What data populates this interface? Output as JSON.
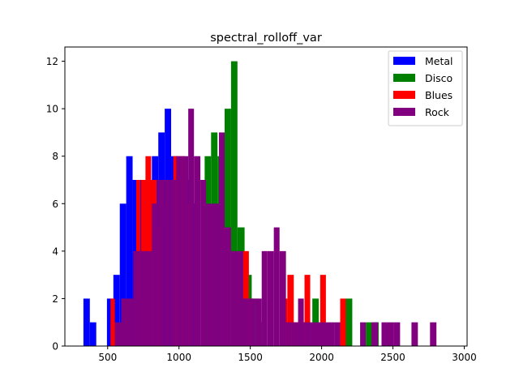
{
  "chart_data": {
    "type": "histogram",
    "title": "spectral_rolloff_var",
    "xlabel": "",
    "ylabel": "",
    "xlim": [
      200,
      3020
    ],
    "ylim": [
      0,
      12.6
    ],
    "x_ticks": [
      500,
      1000,
      1500,
      2000,
      2500,
      3000
    ],
    "y_ticks": [
      0,
      2,
      4,
      6,
      8,
      10,
      12
    ],
    "grid": false,
    "legend_position": "top-right",
    "series": [
      {
        "name": "Metal",
        "color": "#0000ff",
        "bins": [
          [
            330,
            375,
            2
          ],
          [
            375,
            420,
            1
          ],
          [
            495,
            540,
            2
          ],
          [
            540,
            585,
            3
          ],
          [
            585,
            630,
            6
          ],
          [
            630,
            675,
            8
          ],
          [
            675,
            720,
            7
          ],
          [
            720,
            765,
            7
          ],
          [
            765,
            810,
            7
          ],
          [
            810,
            855,
            8
          ],
          [
            855,
            900,
            9
          ],
          [
            900,
            945,
            10
          ],
          [
            945,
            990,
            8
          ],
          [
            990,
            1035,
            7
          ],
          [
            1035,
            1080,
            7
          ],
          [
            1080,
            1125,
            6
          ]
        ]
      },
      {
        "name": "Disco",
        "color": "#008000",
        "bins": [
          [
            1180,
            1225,
            8
          ],
          [
            1225,
            1270,
            9
          ],
          [
            1270,
            1320,
            8
          ],
          [
            1320,
            1365,
            10
          ],
          [
            1365,
            1410,
            12
          ],
          [
            1410,
            1460,
            5
          ],
          [
            1460,
            1510,
            3
          ],
          [
            1510,
            1560,
            2
          ],
          [
            1560,
            1610,
            1
          ],
          [
            1935,
            1980,
            2
          ],
          [
            2170,
            2215,
            2
          ],
          [
            2310,
            2355,
            1
          ],
          [
            2360,
            2400,
            1
          ]
        ]
      },
      {
        "name": "Blues",
        "color": "#ff0000",
        "bins": [
          [
            520,
            550,
            2
          ],
          [
            700,
            730,
            7
          ],
          [
            735,
            765,
            7
          ],
          [
            765,
            805,
            8
          ],
          [
            805,
            845,
            7
          ],
          [
            845,
            880,
            5
          ],
          [
            960,
            1000,
            8
          ],
          [
            1000,
            1040,
            8
          ],
          [
            1040,
            1080,
            6
          ],
          [
            1450,
            1490,
            4
          ],
          [
            1490,
            1520,
            2
          ],
          [
            1720,
            1760,
            2
          ],
          [
            1760,
            1805,
            3
          ],
          [
            1805,
            1845,
            1
          ],
          [
            1840,
            1880,
            1
          ],
          [
            1880,
            1920,
            3
          ],
          [
            1990,
            2030,
            3
          ],
          [
            2130,
            2170,
            2
          ]
        ]
      },
      {
        "name": "Rock",
        "color": "#800080",
        "bins": [
          [
            550,
            595,
            1
          ],
          [
            595,
            635,
            2
          ],
          [
            635,
            680,
            2
          ],
          [
            680,
            720,
            4
          ],
          [
            720,
            765,
            4
          ],
          [
            765,
            810,
            4
          ],
          [
            810,
            850,
            6
          ],
          [
            850,
            895,
            7
          ],
          [
            895,
            935,
            7
          ],
          [
            935,
            980,
            7
          ],
          [
            980,
            1020,
            8
          ],
          [
            1020,
            1065,
            8
          ],
          [
            1065,
            1105,
            10
          ],
          [
            1105,
            1150,
            8
          ],
          [
            1150,
            1190,
            7
          ],
          [
            1190,
            1235,
            6
          ],
          [
            1235,
            1280,
            6
          ],
          [
            1280,
            1320,
            9
          ],
          [
            1320,
            1365,
            5
          ],
          [
            1365,
            1405,
            4
          ],
          [
            1405,
            1450,
            4
          ],
          [
            1450,
            1490,
            2
          ],
          [
            1490,
            1535,
            2
          ],
          [
            1535,
            1580,
            2
          ],
          [
            1580,
            1620,
            4
          ],
          [
            1620,
            1665,
            4
          ],
          [
            1665,
            1705,
            5
          ],
          [
            1705,
            1750,
            4
          ],
          [
            1750,
            1790,
            1
          ],
          [
            1790,
            1835,
            1
          ],
          [
            1835,
            1875,
            2
          ],
          [
            1875,
            1920,
            1
          ],
          [
            1920,
            1960,
            1
          ],
          [
            1960,
            2005,
            1
          ],
          [
            2005,
            2045,
            1
          ],
          [
            2045,
            2090,
            1
          ],
          [
            2090,
            2130,
            1
          ],
          [
            2270,
            2310,
            1
          ],
          [
            2350,
            2395,
            1
          ],
          [
            2420,
            2460,
            1
          ],
          [
            2460,
            2505,
            1
          ],
          [
            2505,
            2550,
            1
          ],
          [
            2630,
            2675,
            1
          ],
          [
            2760,
            2805,
            1
          ]
        ]
      }
    ]
  }
}
